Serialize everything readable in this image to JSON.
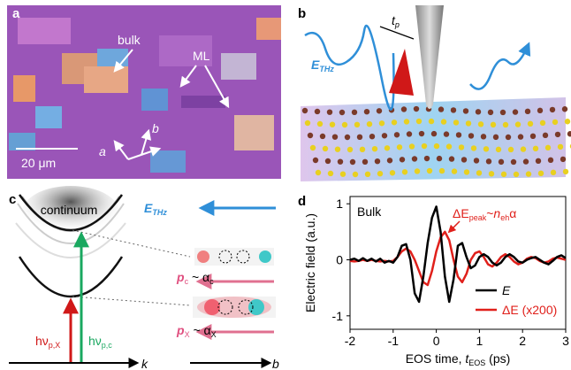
{
  "panel_a": {
    "letter": "a",
    "bulk": "bulk",
    "ml": "ML",
    "scale": "20 μm",
    "axis_a": "a",
    "axis_b": "b"
  },
  "panel_b": {
    "letter": "b",
    "field": "E",
    "field_sub": "THz",
    "pulse": "t",
    "pulse_sub": "p"
  },
  "panel_c": {
    "letter": "c",
    "continuum": "continuum",
    "field": "E",
    "field_sub": "THz",
    "pc": [
      "p",
      "c",
      " ~ α",
      "c"
    ],
    "px": [
      "p",
      "X",
      " ~ α",
      "X"
    ],
    "hv_x": [
      "hν",
      "p,X"
    ],
    "hv_c": [
      "hν",
      "p,c"
    ],
    "k": "k",
    "b": "b"
  },
  "chart_data": {
    "type": "line",
    "letter": "d",
    "label": "Bulk",
    "annotation": [
      "ΔE",
      "peak",
      "~",
      "n",
      "eh",
      "α"
    ],
    "ylabel": "Electric field (a.u.)",
    "xlabel": [
      "EOS time, ",
      "t",
      "EOS",
      " (ps)"
    ],
    "x": [
      -2,
      -1.9,
      -1.8,
      -1.7,
      -1.6,
      -1.5,
      -1.4,
      -1.3,
      -1.2,
      -1.1,
      -1,
      -0.9,
      -0.8,
      -0.7,
      -0.6,
      -0.5,
      -0.4,
      -0.3,
      -0.2,
      -0.1,
      0,
      0.1,
      0.2,
      0.3,
      0.4,
      0.5,
      0.6,
      0.7,
      0.8,
      0.9,
      1,
      1.1,
      1.2,
      1.3,
      1.4,
      1.5,
      1.6,
      1.7,
      1.8,
      1.9,
      2,
      2.1,
      2.2,
      2.3,
      2.4,
      2.5,
      2.6,
      2.7,
      2.8,
      2.9,
      3
    ],
    "series": [
      {
        "name": "E",
        "color": "#000000",
        "values": [
          0,
          0.02,
          -0.02,
          0.03,
          -0.02,
          0.02,
          -0.03,
          0.02,
          -0.05,
          -0.02,
          -0.05,
          0.05,
          0.25,
          0.28,
          0,
          -0.6,
          -0.75,
          -0.3,
          0.3,
          0.75,
          0.95,
          0.5,
          -0.3,
          -0.75,
          -0.35,
          0.25,
          0.3,
          0.05,
          -0.15,
          -0.1,
          0.05,
          0.1,
          0.05,
          -0.05,
          -0.1,
          -0.05,
          0.05,
          0.1,
          0.05,
          -0.03,
          -0.05,
          0,
          0.03,
          0.05,
          0,
          -0.05,
          -0.08,
          -0.02,
          0.05,
          0.08,
          0.03
        ]
      },
      {
        "name": "ΔE (x200)",
        "color": "#e0201b",
        "values": [
          -0.02,
          -0.03,
          -0.02,
          0,
          -0.02,
          0,
          -0.02,
          -0.03,
          -0.02,
          -0.03,
          -0.02,
          0.05,
          0.15,
          0.2,
          0.15,
          0,
          -0.2,
          -0.4,
          -0.45,
          -0.2,
          0.15,
          0.4,
          0.5,
          0.35,
          0,
          -0.3,
          -0.4,
          -0.25,
          0,
          0.12,
          0.15,
          0.05,
          -0.08,
          -0.12,
          -0.05,
          0.05,
          0.1,
          0.05,
          -0.03,
          -0.08,
          -0.05,
          0.02,
          0.05,
          0.03,
          -0.02,
          -0.05,
          -0.03,
          0.02,
          0.04,
          0.02,
          0
        ]
      }
    ],
    "xlim": [
      -2,
      3
    ],
    "ylim": [
      -1.24,
      1.13
    ],
    "xticks": [
      -2,
      -1,
      0,
      1,
      2,
      3
    ],
    "yticks": [
      -1,
      0,
      1
    ]
  }
}
